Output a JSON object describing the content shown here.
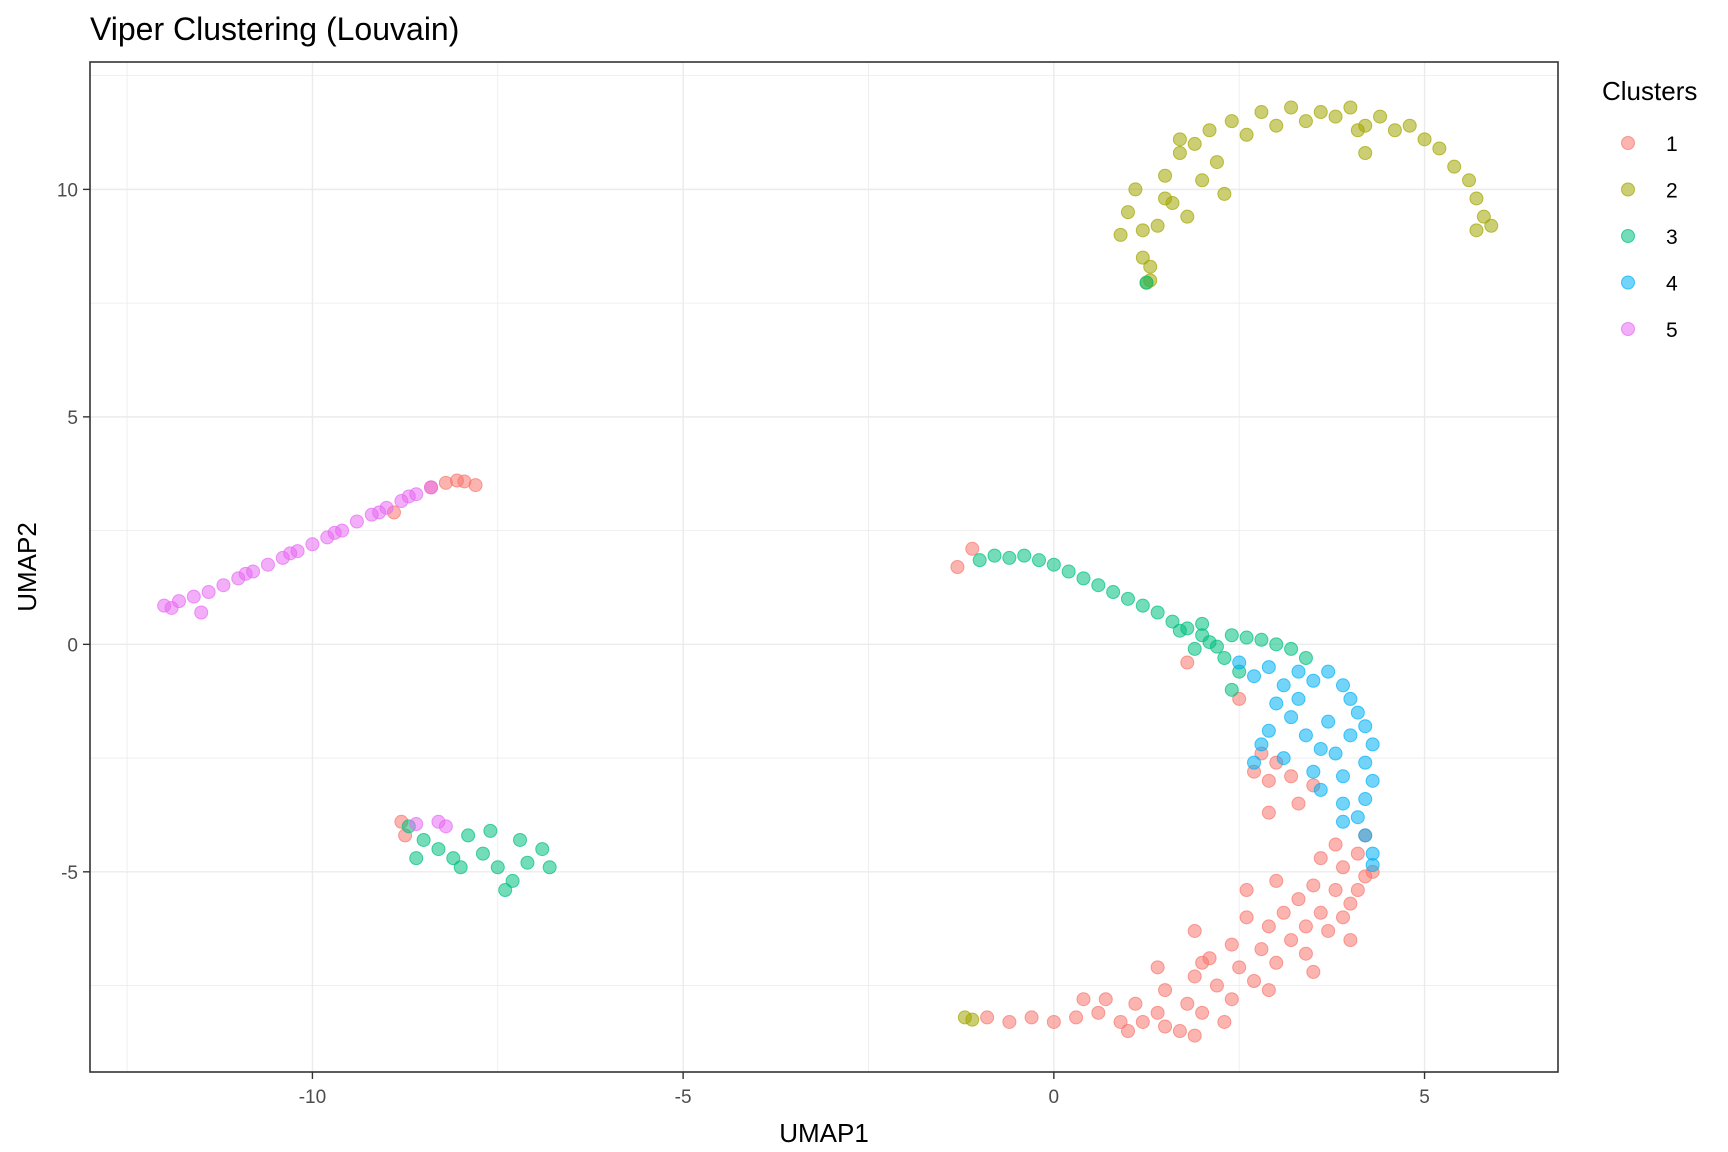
{
  "chart_data": {
    "type": "scatter",
    "title": "Viper Clustering (Louvain)",
    "xlabel": "UMAP1",
    "ylabel": "UMAP2",
    "xlim": [
      -13,
      6.8
    ],
    "ylim": [
      -9.4,
      12.8
    ],
    "xticks": [
      -10,
      -5,
      0,
      5
    ],
    "xtick_labels": [
      "-10",
      "-5",
      "0",
      "5"
    ],
    "yticks": [
      -5,
      0,
      5,
      10
    ],
    "ytick_labels": [
      "-5",
      "0",
      "5",
      "10"
    ],
    "grid": true,
    "legend": {
      "title": "Clusters",
      "position": "right"
    },
    "series": [
      {
        "name": "1",
        "color": "#F8766D",
        "points": [
          [
            -8.2,
            3.55
          ],
          [
            -8.05,
            3.6
          ],
          [
            -7.95,
            3.58
          ],
          [
            -7.8,
            3.5
          ],
          [
            -8.4,
            3.45
          ],
          [
            -8.9,
            2.9
          ],
          [
            -1.3,
            1.7
          ],
          [
            -1.1,
            2.1
          ],
          [
            -8.8,
            -3.9
          ],
          [
            -8.75,
            -4.2
          ],
          [
            1.8,
            -0.4
          ],
          [
            2.5,
            -1.2
          ],
          [
            2.8,
            -2.4
          ],
          [
            3.0,
            -2.6
          ],
          [
            2.9,
            -3.0
          ],
          [
            3.2,
            -2.9
          ],
          [
            3.3,
            -3.5
          ],
          [
            2.9,
            -3.7
          ],
          [
            3.5,
            -3.1
          ],
          [
            2.7,
            -2.8
          ],
          [
            4.2,
            -4.2
          ],
          [
            4.1,
            -4.6
          ],
          [
            3.9,
            -4.9
          ],
          [
            3.6,
            -4.7
          ],
          [
            4.2,
            -5.1
          ],
          [
            3.8,
            -5.4
          ],
          [
            3.5,
            -5.3
          ],
          [
            3.3,
            -5.6
          ],
          [
            4.0,
            -5.7
          ],
          [
            3.6,
            -5.9
          ],
          [
            3.1,
            -5.9
          ],
          [
            3.4,
            -6.2
          ],
          [
            2.9,
            -6.2
          ],
          [
            2.6,
            -6.0
          ],
          [
            3.2,
            -6.5
          ],
          [
            3.7,
            -6.3
          ],
          [
            2.8,
            -6.7
          ],
          [
            2.4,
            -6.6
          ],
          [
            3.0,
            -7.0
          ],
          [
            2.5,
            -7.1
          ],
          [
            2.1,
            -6.9
          ],
          [
            2.7,
            -7.4
          ],
          [
            2.2,
            -7.5
          ],
          [
            1.9,
            -7.3
          ],
          [
            2.4,
            -7.8
          ],
          [
            1.8,
            -7.9
          ],
          [
            1.5,
            -7.6
          ],
          [
            2.0,
            -8.1
          ],
          [
            1.4,
            -8.1
          ],
          [
            1.1,
            -7.9
          ],
          [
            1.5,
            -8.4
          ],
          [
            0.9,
            -8.3
          ],
          [
            0.6,
            -8.1
          ],
          [
            1.0,
            -8.5
          ],
          [
            0.3,
            -8.2
          ],
          [
            0.0,
            -8.3
          ],
          [
            -0.3,
            -8.2
          ],
          [
            -0.6,
            -8.3
          ],
          [
            -0.9,
            -8.2
          ],
          [
            4.3,
            -5.0
          ],
          [
            4.1,
            -5.4
          ],
          [
            3.9,
            -6.0
          ],
          [
            3.4,
            -6.8
          ],
          [
            2.9,
            -7.6
          ],
          [
            2.3,
            -8.3
          ],
          [
            1.7,
            -8.5
          ],
          [
            1.2,
            -8.3
          ],
          [
            0.7,
            -7.8
          ],
          [
            2.0,
            -7.0
          ],
          [
            3.0,
            -5.2
          ],
          [
            3.8,
            -4.4
          ],
          [
            4.0,
            -6.5
          ],
          [
            3.5,
            -7.2
          ],
          [
            1.9,
            -6.3
          ],
          [
            1.4,
            -7.1
          ],
          [
            2.6,
            -5.4
          ],
          [
            1.9,
            -8.6
          ],
          [
            0.4,
            -7.8
          ]
        ]
      },
      {
        "name": "2",
        "color": "#A3A500",
        "points": [
          [
            0.9,
            9.0
          ],
          [
            1.0,
            9.5
          ],
          [
            1.1,
            10.0
          ],
          [
            1.2,
            8.5
          ],
          [
            1.3,
            8.0
          ],
          [
            1.4,
            9.2
          ],
          [
            1.5,
            10.3
          ],
          [
            1.6,
            9.7
          ],
          [
            1.7,
            10.8
          ],
          [
            1.8,
            9.4
          ],
          [
            1.9,
            11.0
          ],
          [
            2.0,
            10.2
          ],
          [
            2.1,
            11.3
          ],
          [
            2.2,
            10.6
          ],
          [
            2.4,
            11.5
          ],
          [
            2.6,
            11.2
          ],
          [
            2.8,
            11.7
          ],
          [
            3.0,
            11.4
          ],
          [
            3.2,
            11.8
          ],
          [
            3.4,
            11.5
          ],
          [
            3.6,
            11.7
          ],
          [
            3.8,
            11.6
          ],
          [
            4.0,
            11.8
          ],
          [
            4.2,
            11.4
          ],
          [
            4.4,
            11.6
          ],
          [
            4.6,
            11.3
          ],
          [
            4.8,
            11.4
          ],
          [
            5.0,
            11.1
          ],
          [
            5.2,
            10.9
          ],
          [
            5.4,
            10.5
          ],
          [
            5.6,
            10.2
          ],
          [
            5.7,
            9.8
          ],
          [
            5.8,
            9.4
          ],
          [
            5.9,
            9.2
          ],
          [
            5.7,
            9.1
          ],
          [
            4.1,
            11.3
          ],
          [
            4.2,
            10.8
          ],
          [
            1.3,
            8.3
          ],
          [
            1.5,
            9.8
          ],
          [
            1.2,
            9.1
          ],
          [
            2.3,
            9.9
          ],
          [
            1.7,
            11.1
          ],
          [
            -1.2,
            -8.2
          ],
          [
            -1.1,
            -8.25
          ],
          [
            1.25,
            7.95
          ]
        ]
      },
      {
        "name": "3",
        "color": "#00BF7D",
        "points": [
          [
            -1.0,
            1.85
          ],
          [
            -0.8,
            1.95
          ],
          [
            -0.6,
            1.9
          ],
          [
            -0.4,
            1.95
          ],
          [
            -0.2,
            1.85
          ],
          [
            0.0,
            1.75
          ],
          [
            0.2,
            1.6
          ],
          [
            0.4,
            1.45
          ],
          [
            0.6,
            1.3
          ],
          [
            0.8,
            1.15
          ],
          [
            1.0,
            1.0
          ],
          [
            1.2,
            0.85
          ],
          [
            1.4,
            0.7
          ],
          [
            1.6,
            0.5
          ],
          [
            1.8,
            0.35
          ],
          [
            2.0,
            0.2
          ],
          [
            2.1,
            0.05
          ],
          [
            2.2,
            -0.05
          ],
          [
            2.4,
            0.2
          ],
          [
            2.6,
            0.15
          ],
          [
            2.8,
            0.1
          ],
          [
            3.0,
            0.0
          ],
          [
            3.2,
            -0.1
          ],
          [
            3.4,
            -0.3
          ],
          [
            1.9,
            -0.1
          ],
          [
            2.3,
            -0.3
          ],
          [
            2.5,
            -0.6
          ],
          [
            2.4,
            -1.0
          ],
          [
            1.7,
            0.3
          ],
          [
            2.0,
            0.45
          ],
          [
            -8.7,
            -4.0
          ],
          [
            -8.5,
            -4.3
          ],
          [
            -8.3,
            -4.5
          ],
          [
            -8.1,
            -4.7
          ],
          [
            -7.9,
            -4.2
          ],
          [
            -7.7,
            -4.6
          ],
          [
            -7.5,
            -4.9
          ],
          [
            -7.3,
            -5.2
          ],
          [
            -7.1,
            -4.8
          ],
          [
            -6.9,
            -4.5
          ],
          [
            -6.8,
            -4.9
          ],
          [
            -7.2,
            -4.3
          ],
          [
            -7.6,
            -4.1
          ],
          [
            -8.0,
            -4.9
          ],
          [
            -7.4,
            -5.4
          ],
          [
            -8.6,
            -4.7
          ],
          [
            1.25,
            7.95
          ]
        ]
      },
      {
        "name": "4",
        "color": "#00B0F6",
        "points": [
          [
            2.5,
            -0.4
          ],
          [
            2.7,
            -0.7
          ],
          [
            2.9,
            -0.5
          ],
          [
            3.1,
            -0.9
          ],
          [
            3.3,
            -0.6
          ],
          [
            3.5,
            -0.8
          ],
          [
            3.7,
            -0.6
          ],
          [
            3.9,
            -0.9
          ],
          [
            4.0,
            -1.2
          ],
          [
            4.1,
            -1.5
          ],
          [
            4.2,
            -1.8
          ],
          [
            4.3,
            -2.2
          ],
          [
            4.2,
            -2.6
          ],
          [
            4.3,
            -3.0
          ],
          [
            4.2,
            -3.4
          ],
          [
            4.1,
            -3.8
          ],
          [
            4.2,
            -4.2
          ],
          [
            4.3,
            -4.6
          ],
          [
            3.0,
            -1.3
          ],
          [
            3.2,
            -1.6
          ],
          [
            2.9,
            -1.9
          ],
          [
            3.4,
            -2.0
          ],
          [
            2.8,
            -2.2
          ],
          [
            3.6,
            -2.3
          ],
          [
            3.1,
            -2.5
          ],
          [
            3.5,
            -2.8
          ],
          [
            3.8,
            -2.4
          ],
          [
            3.9,
            -2.9
          ],
          [
            3.6,
            -3.2
          ],
          [
            3.9,
            -3.5
          ],
          [
            2.7,
            -2.6
          ],
          [
            3.3,
            -1.2
          ],
          [
            3.7,
            -1.7
          ],
          [
            4.0,
            -2.0
          ],
          [
            3.9,
            -3.9
          ],
          [
            4.3,
            -4.85
          ]
        ]
      },
      {
        "name": "5",
        "color": "#E76BF3",
        "points": [
          [
            -12.0,
            0.85
          ],
          [
            -11.8,
            0.95
          ],
          [
            -11.6,
            1.05
          ],
          [
            -11.4,
            1.15
          ],
          [
            -11.2,
            1.3
          ],
          [
            -11.0,
            1.45
          ],
          [
            -10.8,
            1.6
          ],
          [
            -10.6,
            1.75
          ],
          [
            -10.4,
            1.9
          ],
          [
            -10.2,
            2.05
          ],
          [
            -10.0,
            2.2
          ],
          [
            -9.8,
            2.35
          ],
          [
            -9.6,
            2.5
          ],
          [
            -9.4,
            2.7
          ],
          [
            -9.2,
            2.85
          ],
          [
            -9.0,
            3.0
          ],
          [
            -8.8,
            3.15
          ],
          [
            -8.6,
            3.3
          ],
          [
            -8.4,
            3.45
          ],
          [
            -11.9,
            0.8
          ],
          [
            -11.5,
            0.7
          ],
          [
            -10.9,
            1.55
          ],
          [
            -10.3,
            2.0
          ],
          [
            -9.7,
            2.45
          ],
          [
            -9.1,
            2.9
          ],
          [
            -8.7,
            3.25
          ],
          [
            -8.6,
            -3.95
          ],
          [
            -8.3,
            -3.9
          ],
          [
            -8.2,
            -4.0
          ]
        ]
      }
    ]
  }
}
